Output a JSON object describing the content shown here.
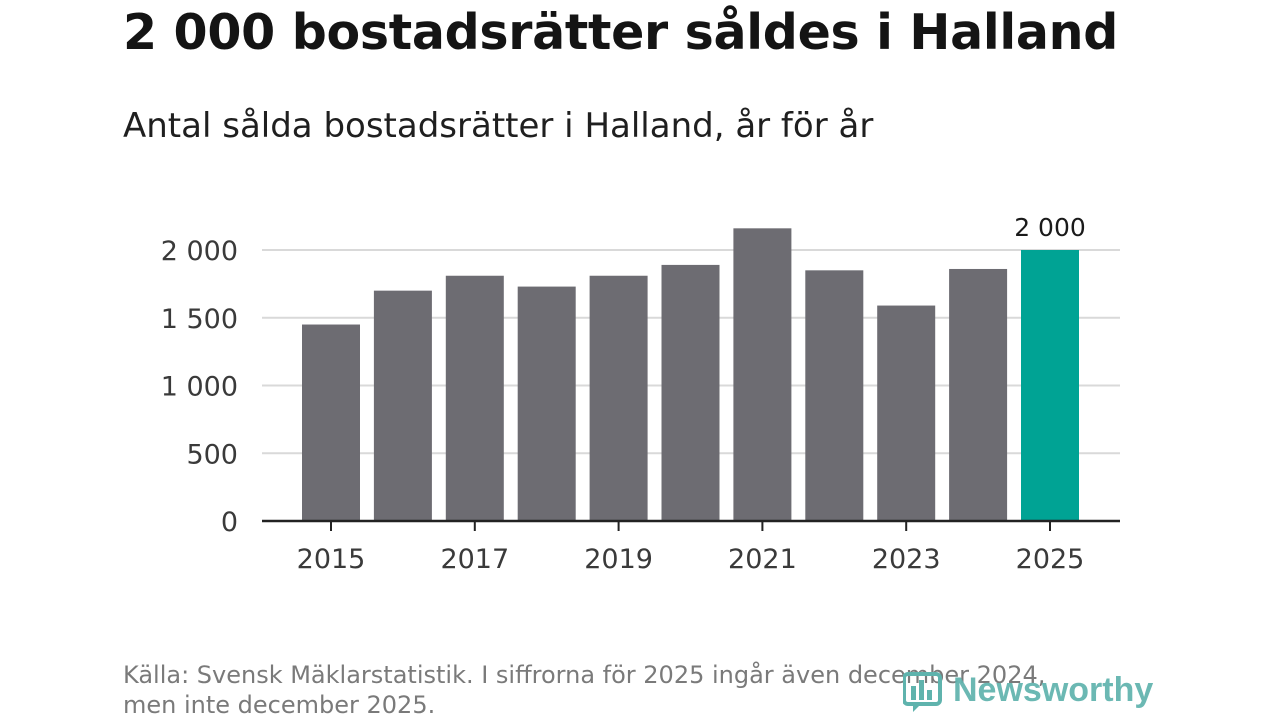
{
  "header": {
    "title": "2 000 bostadsrätter såldes i Halland",
    "subtitle": "Antal sålda bostadsrätter i Halland, år för år"
  },
  "footer": {
    "source_line1": "Källa: Svensk Mäklarstatistik. I siffrorna för 2025 ingår även december 2024,",
    "source_line2": "men inte december 2025."
  },
  "logo": {
    "text": "Newsworthy",
    "icon": "bar-chart-icon"
  },
  "colors": {
    "bar": "#6d6c72",
    "highlight": "#00a394",
    "grid": "#d9d9d9",
    "axis": "#222222"
  },
  "chart_data": {
    "type": "bar",
    "title": "Antal sålda bostadsrätter i Halland, år för år",
    "categories": [
      "2015",
      "2016",
      "2017",
      "2018",
      "2019",
      "2020",
      "2021",
      "2022",
      "2023",
      "2024",
      "2025"
    ],
    "values": [
      1450,
      1700,
      1810,
      1730,
      1810,
      1890,
      2160,
      1850,
      1590,
      1860,
      2000
    ],
    "highlight_index": 10,
    "data_labels": [
      {
        "index": 10,
        "text": "2 000"
      }
    ],
    "xticks": [
      "2015",
      "2017",
      "2019",
      "2021",
      "2023",
      "2025"
    ],
    "yticks": [
      0,
      500,
      1000,
      1500,
      2000
    ],
    "ytick_labels": [
      "0",
      "500",
      "1 000",
      "1 500",
      "2 000"
    ],
    "ylim": [
      0,
      2200
    ],
    "xlabel": "",
    "ylabel": "",
    "grid": true
  }
}
